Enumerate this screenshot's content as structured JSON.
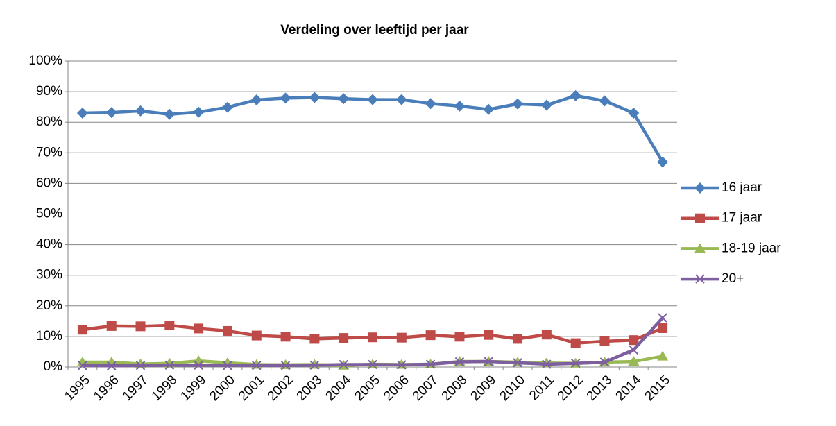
{
  "chart_data": {
    "type": "line",
    "title": "Verdeling over leeftijd per jaar",
    "categories": [
      "1995",
      "1996",
      "1997",
      "1998",
      "1999",
      "2000",
      "2001",
      "2002",
      "2003",
      "2004",
      "2005",
      "2006",
      "2007",
      "2008",
      "2009",
      "2010",
      "2011",
      "2012",
      "2013",
      "2014",
      "2015"
    ],
    "series": [
      {
        "name": "16 jaar",
        "color": "#4a7ebb",
        "marker": "diamond",
        "values": [
          83.0,
          83.2,
          83.7,
          82.6,
          83.3,
          84.9,
          87.3,
          87.9,
          88.1,
          87.7,
          87.4,
          87.4,
          86.1,
          85.3,
          84.2,
          86.0,
          85.6,
          88.7,
          87.0,
          83.0,
          67.0
        ]
      },
      {
        "name": "17 jaar",
        "color": "#be4b48",
        "marker": "square",
        "values": [
          12.2,
          13.4,
          13.3,
          13.6,
          12.6,
          11.8,
          10.3,
          9.9,
          9.2,
          9.5,
          9.7,
          9.6,
          10.4,
          9.9,
          10.5,
          9.2,
          10.6,
          7.8,
          8.4,
          8.8,
          12.7
        ]
      },
      {
        "name": "18-19 jaar",
        "color": "#98b954",
        "marker": "triangle",
        "values": [
          1.6,
          1.6,
          1.0,
          1.2,
          2.0,
          1.4,
          0.8,
          0.7,
          0.8,
          0.5,
          0.9,
          0.8,
          0.9,
          1.8,
          1.8,
          1.6,
          1.3,
          1.2,
          1.6,
          1.8,
          3.5
        ]
      },
      {
        "name": "20+",
        "color": "#7d5fa0",
        "marker": "x",
        "values": [
          0.5,
          0.4,
          0.5,
          0.6,
          0.6,
          0.5,
          0.5,
          0.5,
          0.6,
          0.8,
          0.8,
          0.7,
          0.9,
          1.7,
          1.8,
          1.4,
          0.9,
          1.2,
          1.6,
          5.6,
          16.1
        ]
      }
    ],
    "ylim": [
      0,
      100
    ],
    "yticks": [
      {
        "value": 0,
        "label": "0%"
      },
      {
        "value": 10,
        "label": "10%"
      },
      {
        "value": 20,
        "label": "20%"
      },
      {
        "value": 30,
        "label": "30%"
      },
      {
        "value": 40,
        "label": "40%"
      },
      {
        "value": 50,
        "label": "50%"
      },
      {
        "value": 60,
        "label": "60%"
      },
      {
        "value": 70,
        "label": "70%"
      },
      {
        "value": 80,
        "label": "80%"
      },
      {
        "value": 90,
        "label": "90%"
      },
      {
        "value": 100,
        "label": "100%"
      }
    ],
    "grid": true,
    "legend": "right"
  }
}
